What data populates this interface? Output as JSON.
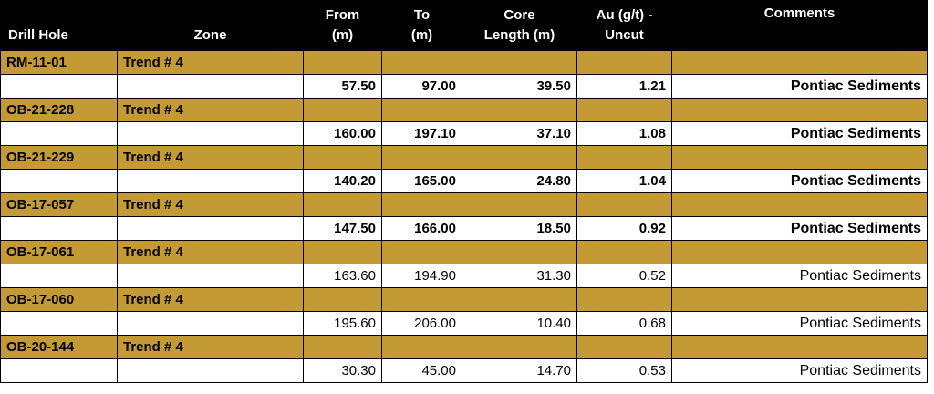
{
  "table": {
    "header": [
      [
        "Drill Hole"
      ],
      [
        "Zone"
      ],
      [
        "From",
        "(m)"
      ],
      [
        "To",
        "(m)"
      ],
      [
        "Core",
        "Length (m)"
      ],
      [
        "Au (g/t) -",
        "Uncut"
      ],
      [
        "Comments"
      ]
    ],
    "holes": [
      {
        "id": "RM-11-01",
        "zone": "Trend # 4",
        "row": [
          "57.50",
          "97.00",
          "39.50",
          "1.21",
          "Pontiac Sediments"
        ],
        "bold": true
      },
      {
        "id": "OB-21-228",
        "zone": "Trend # 4",
        "row": [
          "160.00",
          "197.10",
          "37.10",
          "1.08",
          "Pontiac Sediments"
        ],
        "bold": true
      },
      {
        "id": "OB-21-229",
        "zone": "Trend # 4",
        "row": [
          "140.20",
          "165.00",
          "24.80",
          "1.04",
          "Pontiac Sediments"
        ],
        "bold": true
      },
      {
        "id": "OB-17-057",
        "zone": "Trend # 4",
        "row": [
          "147.50",
          "166.00",
          "18.50",
          "0.92",
          "Pontiac Sediments"
        ],
        "bold": true
      },
      {
        "id": "OB-17-061",
        "zone": "Trend # 4",
        "row": [
          "163.60",
          "194.90",
          "31.30",
          "0.52",
          "Pontiac Sediments"
        ],
        "bold": false
      },
      {
        "id": "OB-17-060",
        "zone": "Trend # 4",
        "row": [
          "195.60",
          "206.00",
          "10.40",
          "0.68",
          "Pontiac Sediments"
        ],
        "bold": false
      },
      {
        "id": "OB-20-144",
        "zone": "Trend # 4",
        "row": [
          "30.30",
          "45.00",
          "14.70",
          "0.53",
          "Pontiac Sediments"
        ],
        "bold": false
      }
    ]
  }
}
